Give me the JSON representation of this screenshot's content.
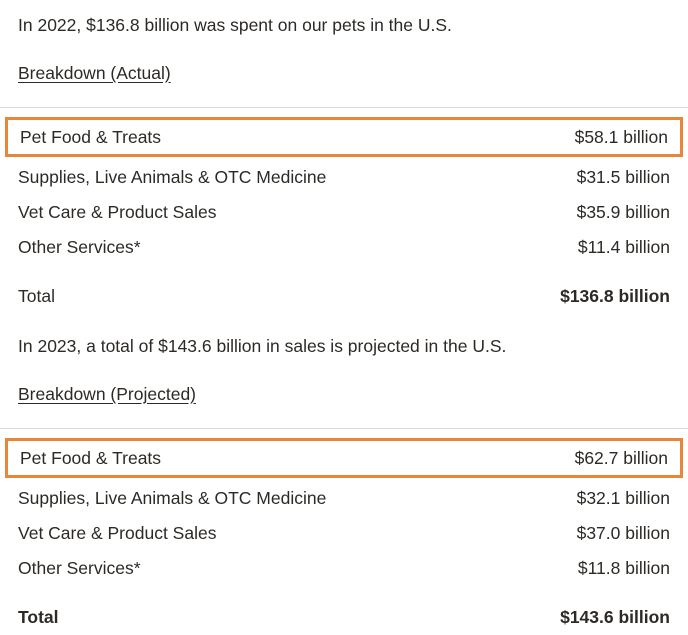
{
  "colors": {
    "text": "#2d2a26",
    "highlight_border": "#e8873b",
    "divider": "#d9d9d9"
  },
  "sections": [
    {
      "intro": "In 2022, $136.8 billion was spent on our pets in the U.S.",
      "heading": "Breakdown (Actual)",
      "rows": [
        {
          "label": "Pet Food & Treats",
          "value": "$58.1 billion",
          "highlighted": true
        },
        {
          "label": "Supplies, Live Animals & OTC Medicine",
          "value": "$31.5 billion",
          "highlighted": false
        },
        {
          "label": "Vet Care & Product Sales",
          "value": "$35.9 billion",
          "highlighted": false
        },
        {
          "label": "Other Services*",
          "value": "$11.4 billion",
          "highlighted": false
        }
      ],
      "total": {
        "label": "Total",
        "value": "$136.8 billion"
      }
    },
    {
      "intro": "In 2023, a total of $143.6 billion in sales is projected in the U.S.",
      "heading": "Breakdown (Projected)",
      "rows": [
        {
          "label": "Pet Food & Treats",
          "value": "$62.7 billion",
          "highlighted": true
        },
        {
          "label": "Supplies, Live Animals & OTC Medicine",
          "value": "$32.1 billion",
          "highlighted": false
        },
        {
          "label": "Vet Care & Product Sales",
          "value": "$37.0 billion",
          "highlighted": false
        },
        {
          "label": "Other Services*",
          "value": "$11.8 billion",
          "highlighted": false
        }
      ],
      "total": {
        "label": "Total",
        "value": "$143.6 billion"
      }
    }
  ]
}
